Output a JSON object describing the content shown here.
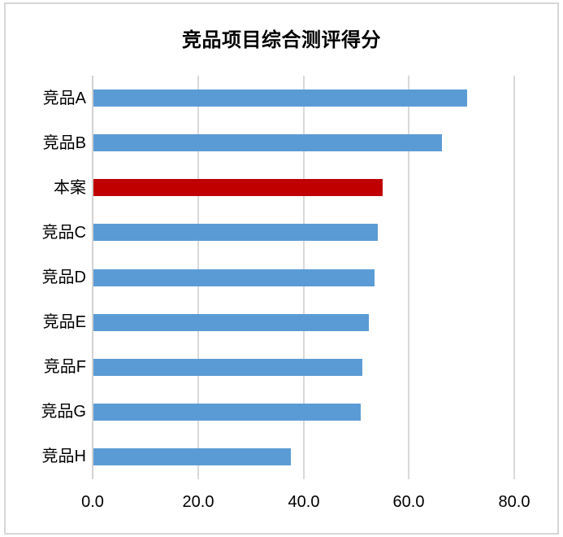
{
  "chart_data": {
    "type": "bar",
    "orientation": "horizontal",
    "title": "竞品项目综合测评得分",
    "categories": [
      "竞品A",
      "竞品B",
      "本案",
      "竞品C",
      "竞品D",
      "竞品E",
      "竞品F",
      "竞品G",
      "竞品H"
    ],
    "values": [
      70.9,
      66.2,
      54.9,
      54.0,
      53.3,
      52.2,
      51.0,
      50.7,
      37.4
    ],
    "highlight_index": 2,
    "highlight_category": "本案",
    "xlabel": "",
    "ylabel": "",
    "xlim": [
      0,
      80
    ],
    "x_ticks": [
      "0.0",
      "20.0",
      "40.0",
      "60.0",
      "80.0"
    ],
    "x_tick_values": [
      0,
      20,
      40,
      60,
      80
    ],
    "grid": "vertical-gridlines",
    "legend": "none",
    "colors": {
      "bar": "#5B9BD5",
      "highlight_bar": "#C00000",
      "gridline": "#D9D9D9",
      "axis_line": "#D2D2D2",
      "frame_border": "#D6D6D6",
      "title_text": "#000000",
      "label_text": "#000000",
      "background": "#FFFFFF"
    }
  }
}
